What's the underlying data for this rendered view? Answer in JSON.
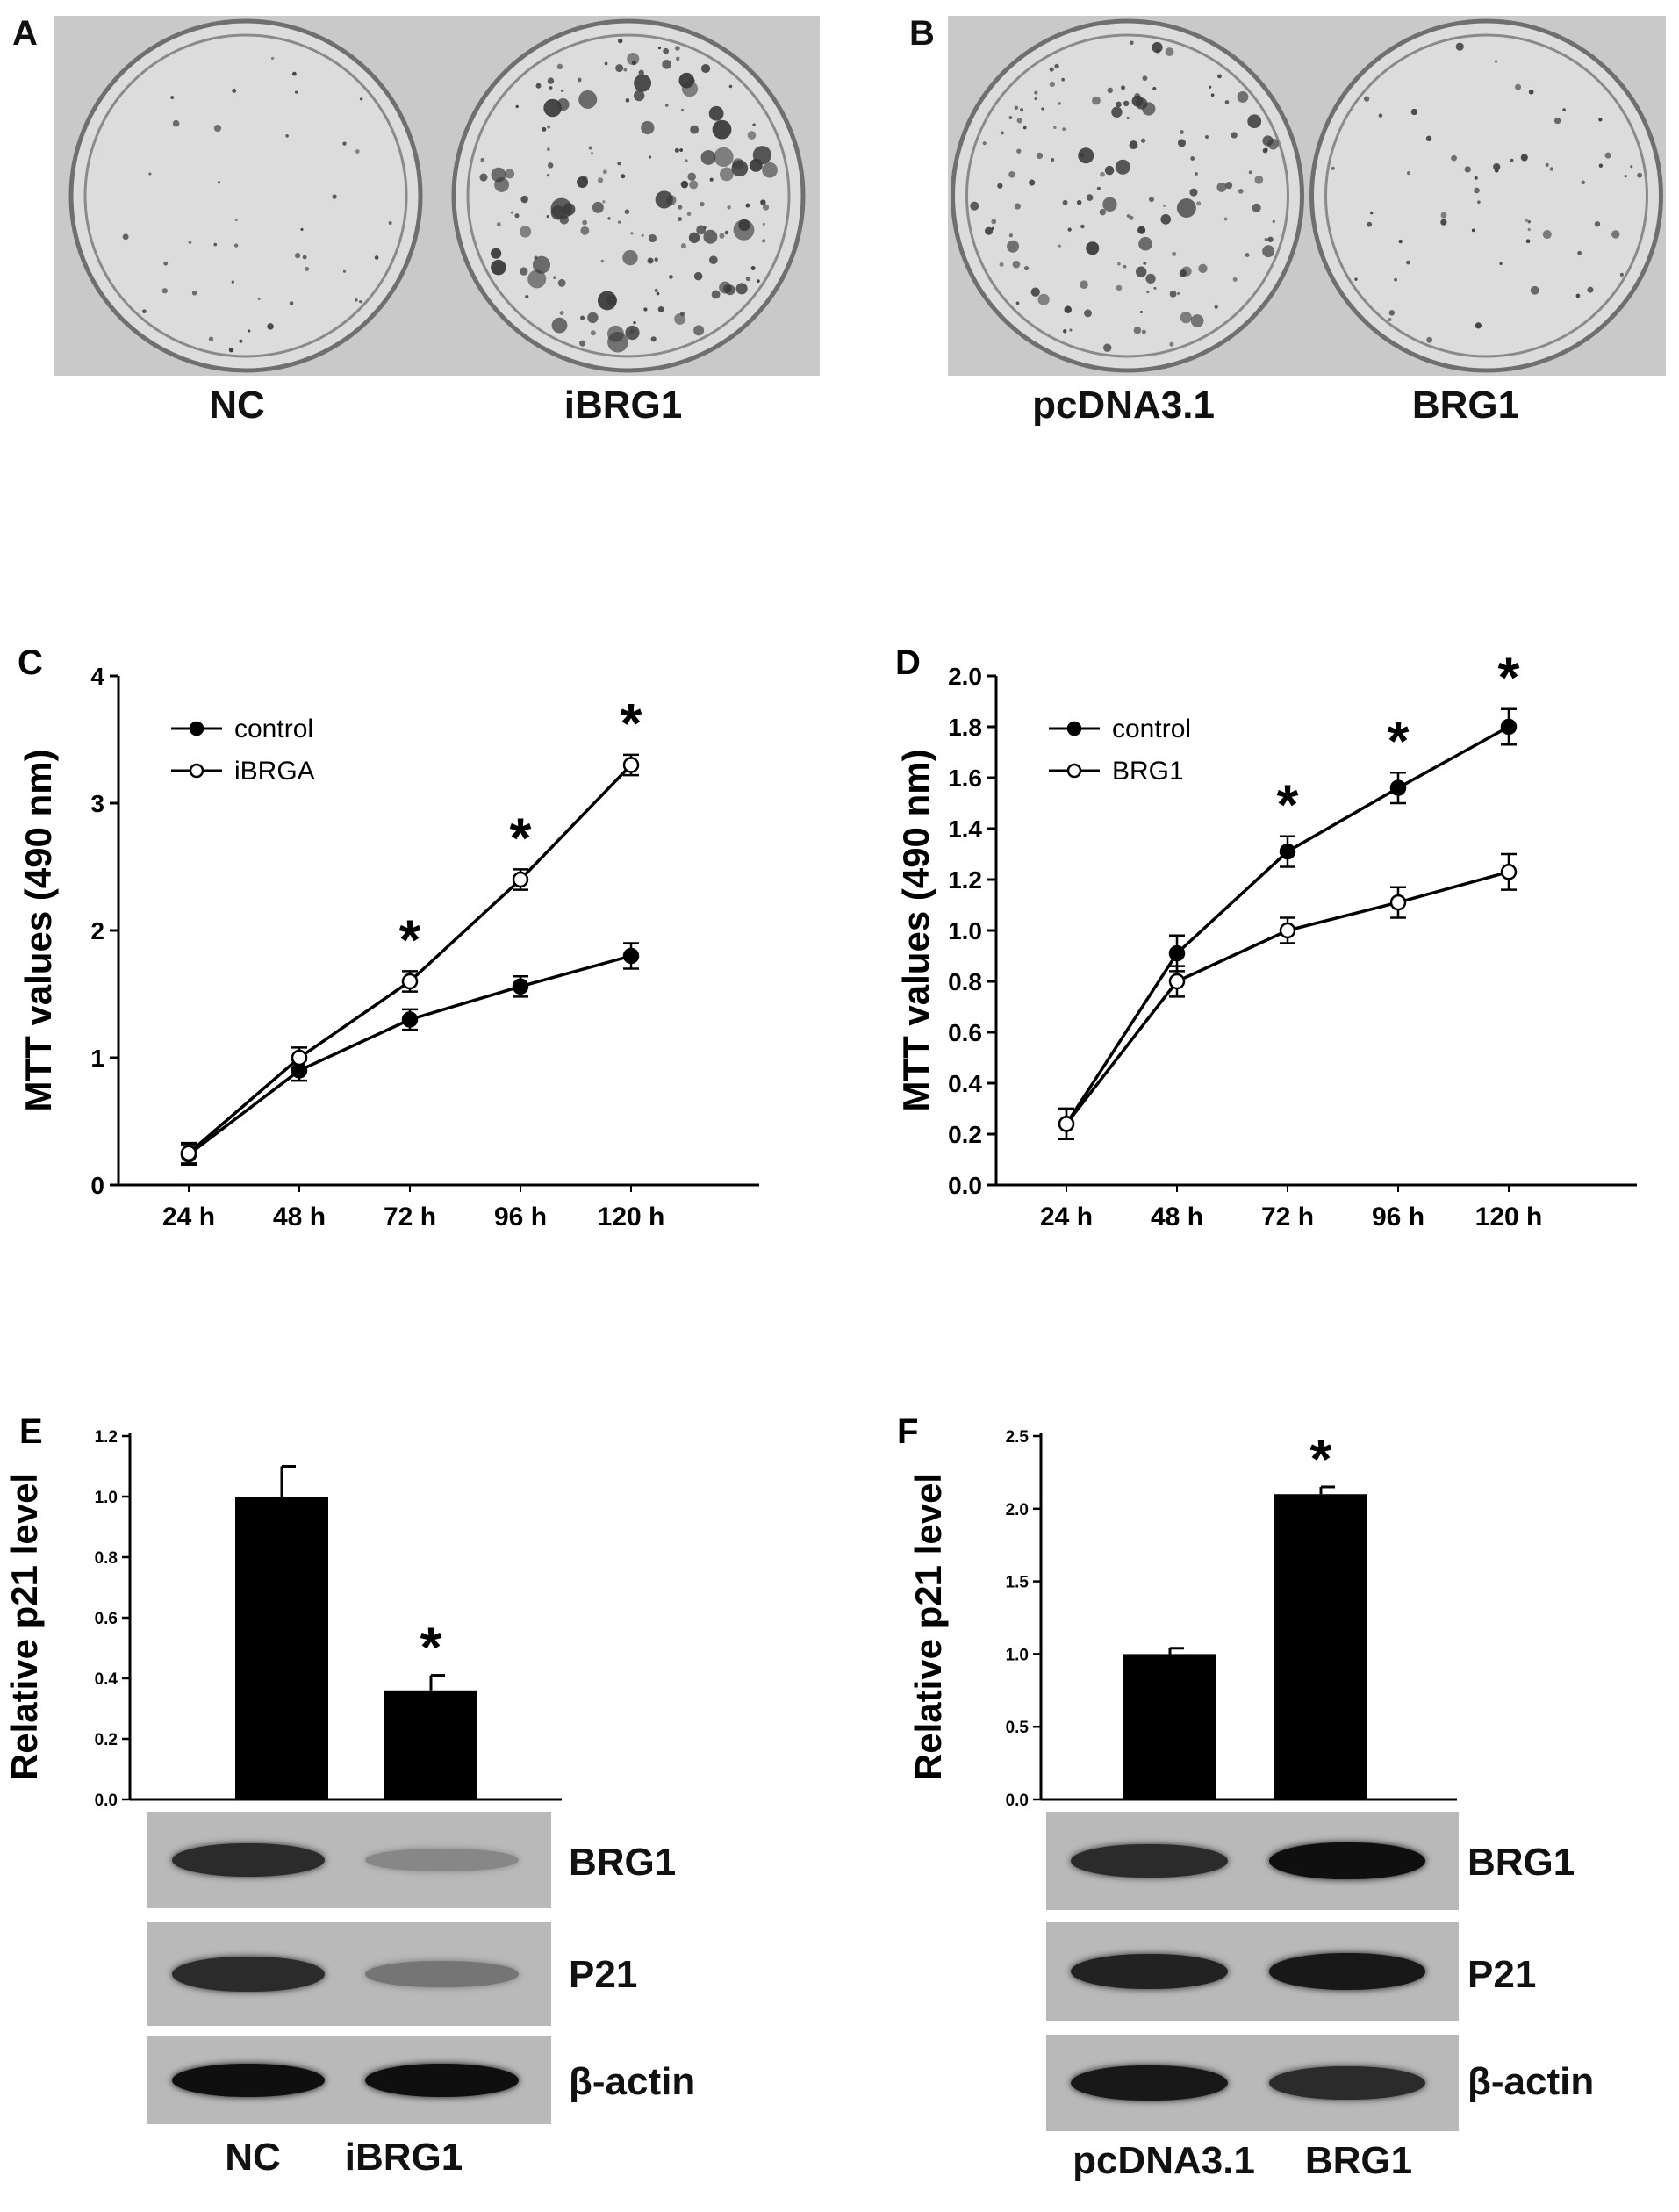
{
  "panels": {
    "A": {
      "letter": "A",
      "labels": [
        "NC",
        "iBRG1"
      ],
      "colony_density": [
        0.25,
        1.0
      ]
    },
    "B": {
      "letter": "B",
      "labels": [
        "pcDNA3.1",
        "BRG1"
      ],
      "colony_density": [
        0.85,
        0.35
      ]
    },
    "E_blot": {
      "rows": [
        "BRG1",
        "P21",
        "β-actin"
      ],
      "lanes": [
        "NC",
        "iBRG1"
      ],
      "band_intensity": [
        [
          0.85,
          0.35
        ],
        [
          0.85,
          0.45
        ],
        [
          1.0,
          1.0
        ]
      ]
    },
    "F_blot": {
      "rows": [
        "BRG1",
        "P21",
        "β-actin"
      ],
      "lanes": [
        "pcDNA3.1",
        "BRG1"
      ],
      "band_intensity": [
        [
          0.85,
          1.0
        ],
        [
          0.9,
          0.95
        ],
        [
          0.95,
          0.85
        ]
      ]
    }
  },
  "chart_data": [
    {
      "id": "C",
      "letter": "C",
      "type": "line",
      "categories": [
        "24 h",
        "48 h",
        "72 h",
        "96 h",
        "120 h"
      ],
      "ylabel": "MTT values (490 nm)",
      "ylim": [
        0,
        4
      ],
      "yticks": [
        0,
        1,
        2,
        3,
        4
      ],
      "ytick_labels": [
        "0",
        "1",
        "2",
        "3",
        "4"
      ],
      "legend_position": "top-left",
      "series": [
        {
          "name": "control",
          "marker": "filled",
          "values": [
            0.24,
            0.9,
            1.3,
            1.56,
            1.8
          ],
          "errors": [
            0.08,
            0.08,
            0.08,
            0.08,
            0.1
          ]
        },
        {
          "name": "iBRGA",
          "marker": "open",
          "values": [
            0.25,
            1.0,
            1.6,
            2.4,
            3.3
          ],
          "errors": [
            0.08,
            0.08,
            0.08,
            0.08,
            0.08
          ]
        }
      ],
      "significance": [
        "",
        "",
        "*",
        "*",
        "*"
      ]
    },
    {
      "id": "D",
      "letter": "D",
      "type": "line",
      "categories": [
        "24 h",
        "48 h",
        "72 h",
        "96 h",
        "120 h"
      ],
      "ylabel": "MTT values (490 nm)",
      "ylim": [
        0,
        2
      ],
      "yticks": [
        0,
        0.2,
        0.4,
        0.6,
        0.8,
        1.0,
        1.2,
        1.4,
        1.6,
        1.8,
        2.0
      ],
      "ytick_labels": [
        "0.0",
        "0.2",
        "0.4",
        "0.6",
        "0.8",
        "1.0",
        "1.2",
        "1.4",
        "1.6",
        "1.8",
        "2.0"
      ],
      "legend_position": "top-left",
      "series": [
        {
          "name": "control",
          "marker": "filled",
          "values": [
            0.24,
            0.91,
            1.31,
            1.56,
            1.8
          ],
          "errors": [
            0.06,
            0.07,
            0.06,
            0.06,
            0.07
          ]
        },
        {
          "name": "BRG1",
          "marker": "open",
          "values": [
            0.24,
            0.8,
            1.0,
            1.11,
            1.23
          ],
          "errors": [
            0.06,
            0.06,
            0.05,
            0.06,
            0.07
          ]
        }
      ],
      "significance": [
        "",
        "",
        "*",
        "*",
        "*"
      ]
    },
    {
      "id": "E",
      "letter": "E",
      "type": "bar",
      "categories": [
        "NC",
        "iBRG1"
      ],
      "values": [
        1.0,
        0.36
      ],
      "errors": [
        0.1,
        0.05
      ],
      "ylabel": "Relative p21 level",
      "ylim": [
        0,
        1.2
      ],
      "yticks": [
        0,
        0.2,
        0.4,
        0.6,
        0.8,
        1.0,
        1.2
      ],
      "ytick_labels": [
        "0.0",
        "0.2",
        "0.4",
        "0.6",
        "0.8",
        "1.0",
        "1.2"
      ],
      "significance": [
        "",
        "*"
      ]
    },
    {
      "id": "F",
      "letter": "F",
      "type": "bar",
      "categories": [
        "pcDNA3.1",
        "BRG1"
      ],
      "values": [
        1.0,
        2.1
      ],
      "errors": [
        0.04,
        0.05
      ],
      "ylabel": "Relative p21 level",
      "ylim": [
        0,
        2.5
      ],
      "yticks": [
        0,
        0.5,
        1.0,
        1.5,
        2.0,
        2.5
      ],
      "ytick_labels": [
        "0.0",
        "0.5",
        "1.0",
        "1.5",
        "2.0",
        "2.5"
      ],
      "significance": [
        "",
        "*"
      ]
    }
  ]
}
